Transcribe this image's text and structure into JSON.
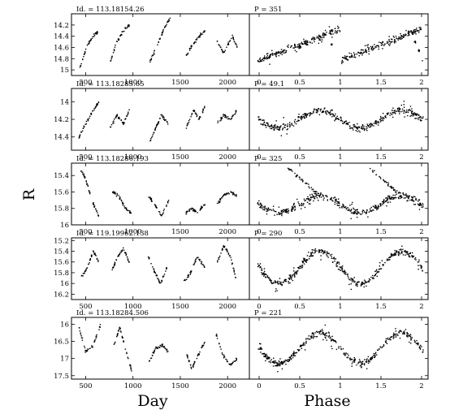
{
  "figure": {
    "ylabel": "R",
    "xlabel_left": "Day",
    "xlabel_right": "Phase"
  },
  "chart_data": [
    {
      "type": "scatter",
      "title": "Id. = 113.18154.26",
      "xlabel": "Day",
      "ylabel": "R",
      "xlim": [
        350,
        2230
      ],
      "ylim": [
        15.1,
        14.0
      ],
      "y_inverted": true,
      "xticks": [
        500,
        1000,
        1500,
        2000
      ],
      "yticks": [
        14.2,
        14.4,
        14.6,
        14.8,
        15
      ],
      "ytick_labels": [
        "14.2",
        "14.4",
        "14.6",
        "14.8",
        "15"
      ],
      "segments": [
        {
          "x": [
            430,
            520,
            580,
            640
          ],
          "y": [
            15.0,
            14.55,
            14.4,
            14.3
          ]
        },
        {
          "x": [
            760,
            830,
            900,
            960
          ],
          "y": [
            14.85,
            14.5,
            14.3,
            14.2
          ]
        },
        {
          "x": [
            1180,
            1250,
            1320,
            1400
          ],
          "y": [
            14.85,
            14.6,
            14.3,
            14.05
          ]
        },
        {
          "x": [
            1560,
            1630,
            1700,
            1760
          ],
          "y": [
            14.75,
            14.55,
            14.4,
            14.3
          ]
        },
        {
          "x": [
            1890,
            1960,
            2050,
            2100
          ],
          "y": [
            14.5,
            14.7,
            14.4,
            14.6
          ]
        }
      ]
    },
    {
      "type": "scatter",
      "title": "P = 351",
      "xlabel": "Phase",
      "ylabel": "R",
      "xlim": [
        -0.12,
        2.08
      ],
      "ylim": [
        15.1,
        14.0
      ],
      "y_inverted": true,
      "xticks": [
        0,
        0.5,
        1,
        1.5,
        2
      ],
      "xtick_labels": [
        "0",
        "0.5",
        "1",
        "1.5",
        "2"
      ],
      "curve": {
        "amplitude": 0.28,
        "mean": 14.55,
        "sawtooth": true
      },
      "outliers": [
        {
          "x": 0.9,
          "y": 14.55
        },
        {
          "x": 1.92,
          "y": 14.5
        },
        {
          "x": 1.97,
          "y": 14.65
        }
      ]
    },
    {
      "type": "scatter",
      "title": "Id. = 113.18285.65",
      "xlabel": "Day",
      "ylabel": "R",
      "xlim": [
        350,
        2230
      ],
      "ylim": [
        14.55,
        13.85
      ],
      "y_inverted": true,
      "xticks": [
        500,
        1000,
        1500,
        2000
      ],
      "yticks": [
        14,
        14.2,
        14.4
      ],
      "ytick_labels": [
        "14",
        "14.2",
        "14.4"
      ],
      "segments": [
        {
          "x": [
            430,
            500,
            580,
            640
          ],
          "y": [
            14.4,
            14.25,
            14.1,
            14.0
          ]
        },
        {
          "x": [
            760,
            830,
            900,
            960
          ],
          "y": [
            14.3,
            14.15,
            14.25,
            14.1
          ]
        },
        {
          "x": [
            1180,
            1240,
            1300,
            1370
          ],
          "y": [
            14.45,
            14.3,
            14.15,
            14.25
          ]
        },
        {
          "x": [
            1560,
            1640,
            1700,
            1760
          ],
          "y": [
            14.3,
            14.1,
            14.2,
            14.05
          ]
        },
        {
          "x": [
            1890,
            1960,
            2030,
            2100
          ],
          "y": [
            14.25,
            14.15,
            14.2,
            14.1
          ]
        }
      ]
    },
    {
      "type": "scatter",
      "title": "P = 49.1",
      "xlabel": "Phase",
      "ylabel": "R",
      "xlim": [
        -0.12,
        2.08
      ],
      "ylim": [
        14.55,
        13.85
      ],
      "y_inverted": true,
      "xticks": [
        0,
        0.5,
        1,
        1.5,
        2
      ],
      "xtick_labels": [
        "0",
        "0.5",
        "1",
        "1.5",
        "2"
      ],
      "curve": {
        "amplitude": 0.1,
        "mean": 14.2,
        "sawtooth": false
      }
    },
    {
      "type": "scatter",
      "title": "Id. = 113.18286.193",
      "xlabel": "Day",
      "ylabel": "R",
      "xlim": [
        350,
        2230
      ],
      "ylim": [
        16.0,
        15.25
      ],
      "y_inverted": true,
      "xticks": [
        500,
        1000,
        1500,
        2000
      ],
      "yticks": [
        15.4,
        15.6,
        15.8,
        16
      ],
      "ytick_labels": [
        "15.4",
        "15.6",
        "15.8",
        "16"
      ],
      "segments": [
        {
          "x": [
            440,
            500,
            580,
            640
          ],
          "y": [
            15.3,
            15.45,
            15.75,
            15.9
          ]
        },
        {
          "x": [
            780,
            850,
            920,
            980
          ],
          "y": [
            15.6,
            15.65,
            15.8,
            15.85
          ]
        },
        {
          "x": [
            1160,
            1230,
            1300,
            1380
          ],
          "y": [
            15.65,
            15.75,
            15.9,
            15.7
          ]
        },
        {
          "x": [
            1560,
            1620,
            1680,
            1760
          ],
          "y": [
            15.85,
            15.8,
            15.85,
            15.75
          ]
        },
        {
          "x": [
            1890,
            1950,
            2030,
            2100
          ],
          "y": [
            15.75,
            15.65,
            15.6,
            15.65
          ]
        }
      ]
    },
    {
      "type": "scatter",
      "title": "P = 325",
      "xlabel": "Phase",
      "ylabel": "R",
      "xlim": [
        -0.12,
        2.08
      ],
      "ylim": [
        16.0,
        15.25
      ],
      "y_inverted": true,
      "xticks": [
        0,
        0.5,
        1,
        1.5,
        2
      ],
      "xtick_labels": [
        "0",
        "0.5",
        "1",
        "1.5",
        "2"
      ],
      "curve": {
        "amplitude": 0.1,
        "mean": 15.75,
        "sawtooth": false
      },
      "upper_branch": {
        "from": 0.35,
        "to": 0.75,
        "y_start": 15.3,
        "y_end": 15.65
      }
    },
    {
      "type": "scatter",
      "title": "Id. = 119.19962.138",
      "xlabel": "Day",
      "ylabel": "R",
      "xlim": [
        350,
        2230
      ],
      "ylim": [
        16.3,
        15.15
      ],
      "y_inverted": true,
      "xticks": [
        500,
        1000,
        1500,
        2000
      ],
      "yticks": [
        15.2,
        15.4,
        15.6,
        15.8,
        16,
        16.2
      ],
      "ytick_labels": [
        "15.2",
        "15.4",
        "15.6",
        "15.8",
        "16",
        "16.2"
      ],
      "segments": [
        {
          "x": [
            450,
            520,
            580,
            640
          ],
          "y": [
            15.9,
            15.7,
            15.4,
            15.6
          ]
        },
        {
          "x": [
            780,
            840,
            900,
            960
          ],
          "y": [
            15.75,
            15.5,
            15.35,
            15.6
          ]
        },
        {
          "x": [
            1160,
            1230,
            1290,
            1360
          ],
          "y": [
            15.5,
            15.8,
            16.0,
            15.7
          ]
        },
        {
          "x": [
            1540,
            1610,
            1680,
            1760
          ],
          "y": [
            15.95,
            15.8,
            15.5,
            15.7
          ]
        },
        {
          "x": [
            1890,
            1960,
            2030,
            2100
          ],
          "y": [
            15.6,
            15.3,
            15.5,
            16.0
          ]
        }
      ]
    },
    {
      "type": "scatter",
      "title": "P = 290",
      "xlabel": "Phase",
      "ylabel": "R",
      "xlim": [
        -0.12,
        2.08
      ],
      "ylim": [
        16.3,
        15.15
      ],
      "y_inverted": true,
      "xticks": [
        0,
        0.5,
        1,
        1.5,
        2
      ],
      "xtick_labels": [
        "0",
        "0.5",
        "1",
        "1.5",
        "2"
      ],
      "curve": {
        "amplitude": 0.3,
        "mean": 15.7,
        "sawtooth": false
      }
    },
    {
      "type": "scatter",
      "title": "Id. = 113.18284.506",
      "xlabel": "Day",
      "ylabel": "R",
      "xlim": [
        350,
        2230
      ],
      "ylim": [
        17.6,
        15.8
      ],
      "y_inverted": true,
      "xticks": [
        500,
        1000,
        1500,
        2000
      ],
      "yticks": [
        16,
        16.5,
        17,
        17.5
      ],
      "ytick_labels": [
        "16",
        "16.5",
        "17",
        "17.5"
      ],
      "segments": [
        {
          "x": [
            420,
            500,
            580,
            660
          ],
          "y": [
            16.0,
            16.8,
            16.6,
            16.0
          ]
        },
        {
          "x": [
            800,
            860,
            930,
            990
          ],
          "y": [
            16.6,
            16.1,
            16.8,
            17.4
          ]
        },
        {
          "x": [
            1170,
            1240,
            1310,
            1370
          ],
          "y": [
            17.1,
            16.7,
            16.6,
            16.8
          ]
        },
        {
          "x": [
            1560,
            1620,
            1690,
            1760
          ],
          "y": [
            16.8,
            17.3,
            16.9,
            16.5
          ]
        },
        {
          "x": [
            1880,
            1950,
            2030,
            2100
          ],
          "y": [
            16.3,
            16.9,
            17.2,
            17.0
          ]
        }
      ]
    },
    {
      "type": "scatter",
      "title": "P = 221",
      "xlabel": "Phase",
      "ylabel": "R",
      "xlim": [
        -0.12,
        2.08
      ],
      "ylim": [
        17.6,
        15.8
      ],
      "y_inverted": true,
      "xticks": [
        0,
        0.5,
        1,
        1.5,
        2
      ],
      "xtick_labels": [
        "0",
        "0.5",
        "1",
        "1.5",
        "2"
      ],
      "curve": {
        "amplitude": 0.45,
        "mean": 16.7,
        "sawtooth": false
      }
    }
  ]
}
